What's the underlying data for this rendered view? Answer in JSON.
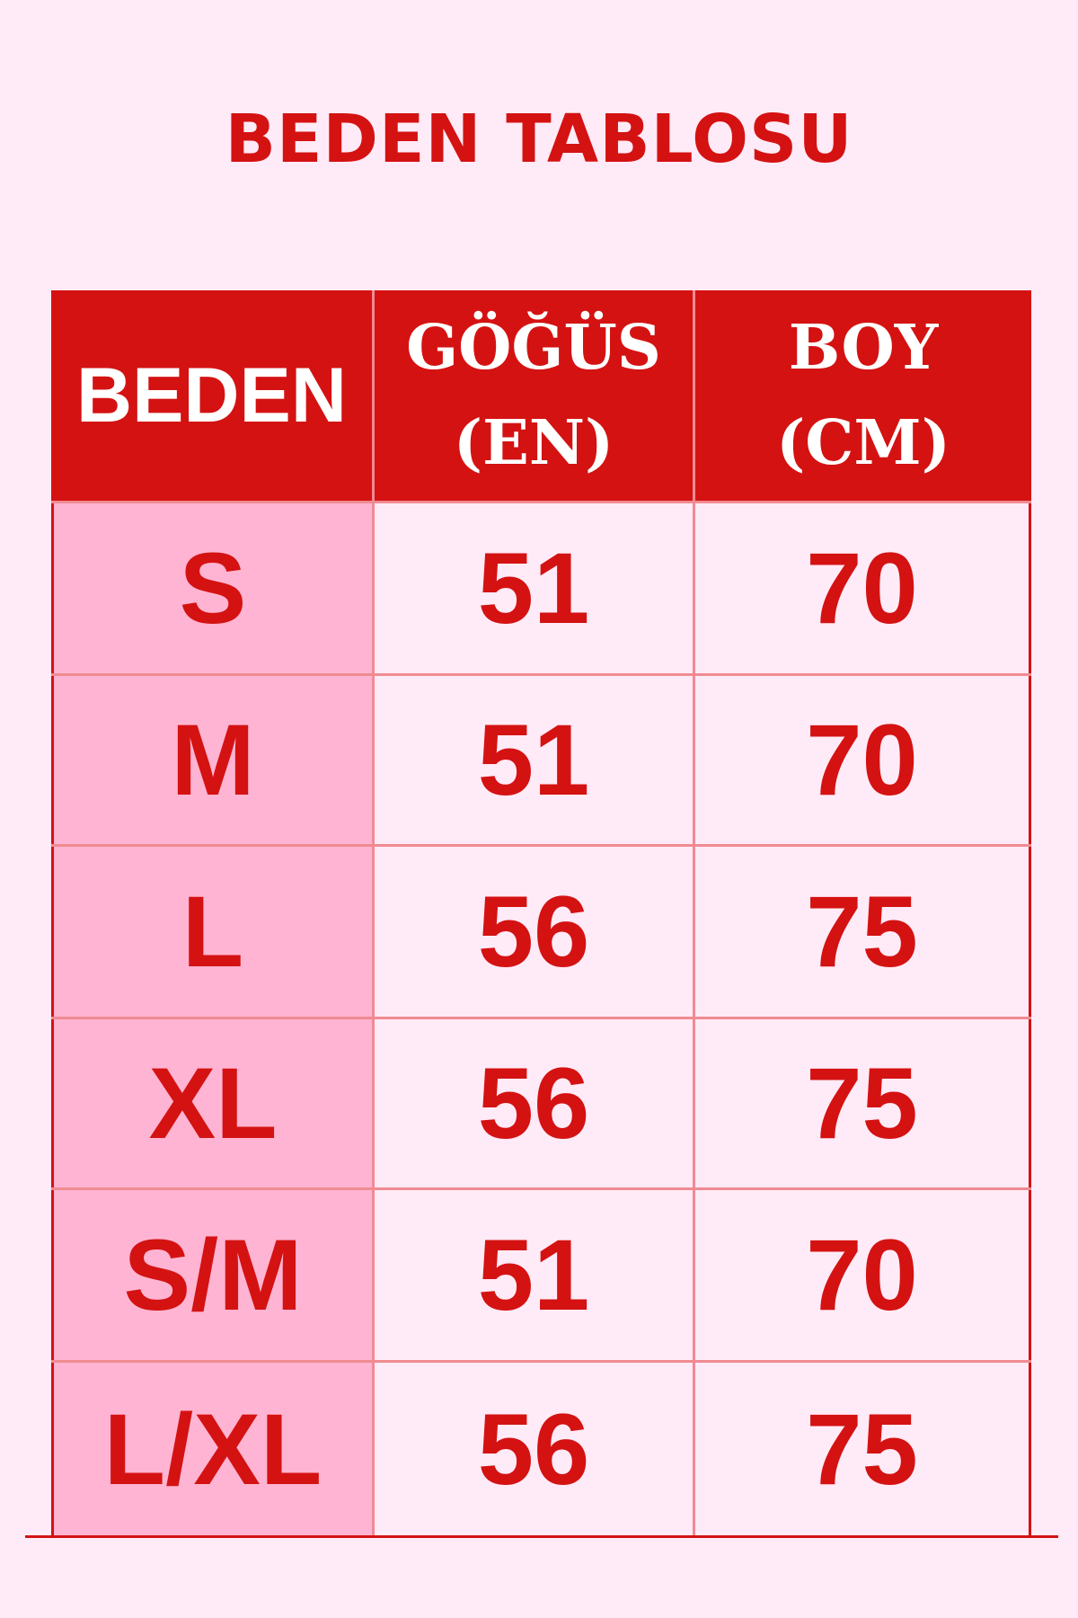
{
  "title": "BEDEN TABLOSU",
  "headers": [
    "BEDEN",
    "GÖĞÜS (EN)",
    "BOY (CM)"
  ],
  "header_lines": {
    "chest": [
      "GÖĞÜS",
      "(EN)"
    ],
    "length": [
      "BOY",
      "(CM)"
    ]
  },
  "rows": [
    {
      "size": "S",
      "chest": "51",
      "length": "70"
    },
    {
      "size": "M",
      "chest": "51",
      "length": "70"
    },
    {
      "size": "L",
      "chest": "56",
      "length": "75"
    },
    {
      "size": "XL",
      "chest": "56",
      "length": "75"
    },
    {
      "size": "S/M",
      "chest": "51",
      "length": "70"
    },
    {
      "size": "L/XL",
      "chest": "56",
      "length": "75"
    }
  ],
  "colors": {
    "accent": "#d41212",
    "background": "#ffeaf7",
    "size_column": "#feb4d2",
    "grid": "#f08a92"
  }
}
